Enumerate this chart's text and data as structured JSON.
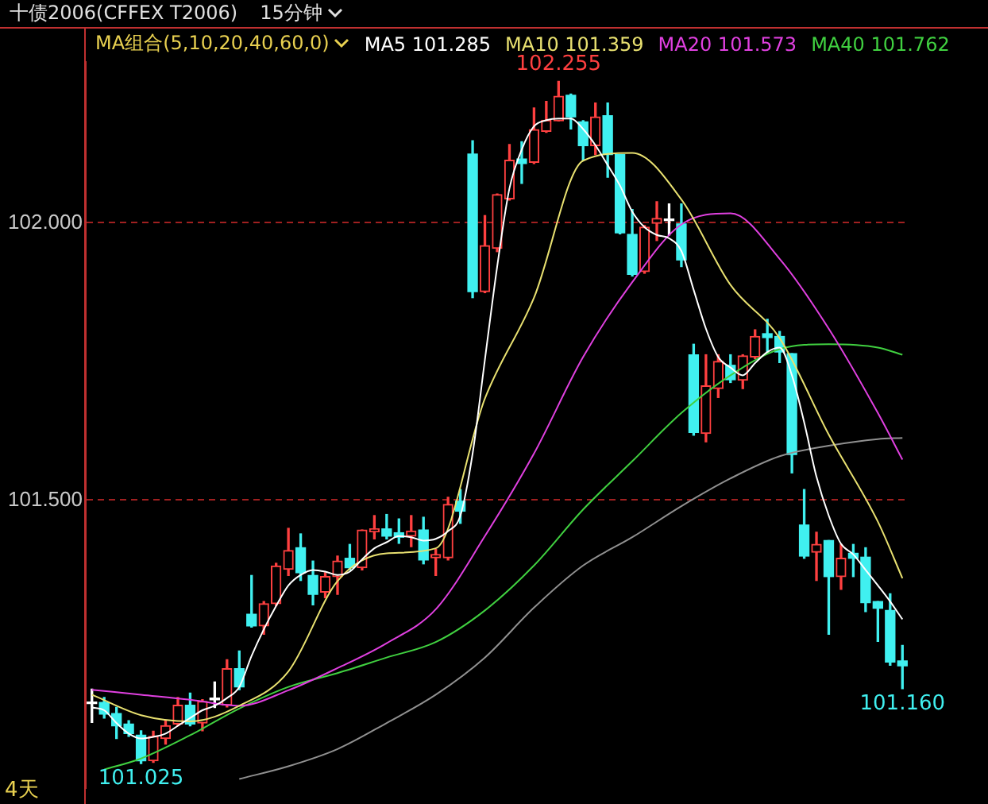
{
  "chart_data": {
    "type": "candlestick",
    "title": "十债2006(CFFEX T2006)",
    "subtitle": "15分钟",
    "legend_title": "MA组合(5,10,20,40,60,0)",
    "legend": "top",
    "grid": "y",
    "tick_labels": "y",
    "categories": [
      null,
      null,
      null,
      null,
      null,
      null,
      null,
      null,
      null,
      null,
      null,
      null,
      null,
      null,
      null,
      null,
      null,
      null,
      null,
      null,
      null,
      null,
      null,
      null,
      null,
      null,
      null,
      null,
      null,
      null,
      null,
      null,
      null,
      null,
      null,
      null,
      null,
      null,
      null,
      null,
      null,
      null,
      null,
      null,
      null,
      null,
      null,
      null,
      null,
      null,
      null,
      null,
      null,
      null,
      null,
      null,
      null,
      null,
      null,
      null,
      null,
      null,
      null,
      null,
      null,
      null,
      null
    ],
    "ylim": [
      100.98,
      102.29
    ],
    "yticks": [
      {
        "value": 101.5,
        "label": "101.500"
      },
      {
        "value": 102,
        "label": "102.000"
      }
    ],
    "ohlc": [
      [
        101.133,
        101.159,
        101.099,
        101.133
      ],
      [
        101.135,
        101.144,
        101.107,
        101.114
      ],
      [
        101.115,
        101.126,
        101.07,
        101.093
      ],
      [
        101.096,
        101.102,
        101.074,
        101.079
      ],
      [
        101.076,
        101.084,
        101.025,
        101.03
      ],
      [
        101.03,
        101.083,
        101.027,
        101.074
      ],
      [
        101.07,
        101.102,
        101.06,
        101.093
      ],
      [
        101.096,
        101.144,
        101.093,
        101.13
      ],
      [
        101.13,
        101.152,
        101.093,
        101.096
      ],
      [
        101.098,
        101.14,
        101.084,
        101.137
      ],
      [
        101.14,
        101.172,
        101.126,
        101.14
      ],
      [
        101.13,
        101.212,
        101.127,
        101.196
      ],
      [
        101.196,
        101.228,
        101.158,
        101.163
      ],
      [
        101.294,
        101.364,
        101.271,
        101.273
      ],
      [
        101.273,
        101.317,
        101.258,
        101.313
      ],
      [
        101.313,
        101.386,
        101.31,
        101.381
      ],
      [
        101.375,
        101.449,
        101.364,
        101.409
      ],
      [
        101.414,
        101.439,
        101.355,
        101.369
      ],
      [
        101.364,
        101.39,
        101.311,
        101.33
      ],
      [
        101.334,
        101.369,
        101.324,
        101.362
      ],
      [
        101.362,
        101.399,
        101.33,
        101.39
      ],
      [
        101.395,
        101.42,
        101.374,
        101.378
      ],
      [
        101.378,
        101.446,
        101.374,
        101.446
      ],
      [
        101.443,
        101.472,
        101.43,
        101.448
      ],
      [
        101.448,
        101.474,
        101.43,
        101.435
      ],
      [
        101.441,
        101.466,
        101.422,
        101.433
      ],
      [
        101.435,
        101.472,
        101.416,
        101.444
      ],
      [
        101.446,
        101.469,
        101.385,
        101.392
      ],
      [
        101.396,
        101.411,
        101.364,
        101.402
      ],
      [
        101.396,
        101.505,
        101.392,
        101.492
      ],
      [
        101.498,
        101.519,
        101.458,
        101.48
      ],
      [
        102.124,
        102.148,
        101.865,
        101.876
      ],
      [
        101.876,
        102.013,
        101.874,
        101.959
      ],
      [
        101.954,
        102.052,
        101.948,
        102.051
      ],
      [
        102.043,
        102.141,
        102.041,
        102.113
      ],
      [
        102.115,
        102.146,
        102.071,
        102.107
      ],
      [
        102.109,
        102.207,
        102.107,
        102.168
      ],
      [
        102.165,
        102.219,
        102.163,
        102.185
      ],
      [
        102.184,
        102.255,
        102.184,
        102.228
      ],
      [
        102.23,
        102.232,
        102.169,
        102.191
      ],
      [
        102.182,
        102.184,
        102.113,
        102.139
      ],
      [
        102.139,
        102.216,
        102.123,
        102.191
      ],
      [
        102.193,
        102.216,
        102.082,
        102.123
      ],
      [
        102.123,
        102.123,
        101.98,
        101.982
      ],
      [
        101.979,
        102.024,
        101.904,
        101.907
      ],
      [
        101.912,
        101.995,
        101.909,
        101.992
      ],
      [
        101.999,
        102.038,
        101.968,
        102.008
      ],
      [
        102.004,
        102.034,
        101.978,
        102.004
      ],
      [
        101.998,
        102.034,
        101.921,
        101.933
      ],
      [
        101.762,
        101.781,
        101.617,
        101.622
      ],
      [
        101.62,
        101.762,
        101.605,
        101.706
      ],
      [
        101.701,
        101.762,
        101.685,
        101.75
      ],
      [
        101.743,
        101.762,
        101.712,
        101.717
      ],
      [
        101.716,
        101.762,
        101.701,
        101.76
      ],
      [
        101.758,
        101.807,
        101.755,
        101.795
      ],
      [
        101.8,
        101.826,
        101.767,
        101.793
      ],
      [
        101.795,
        101.804,
        101.748,
        101.767
      ],
      [
        101.764,
        101.764,
        101.549,
        101.582
      ],
      [
        101.455,
        101.519,
        101.395,
        101.399
      ],
      [
        101.406,
        101.442,
        101.355,
        101.42
      ],
      [
        101.427,
        101.427,
        101.258,
        101.362
      ],
      [
        101.362,
        101.42,
        101.339,
        101.395
      ],
      [
        101.404,
        101.42,
        101.362,
        101.395
      ],
      [
        101.397,
        101.414,
        101.299,
        101.315
      ],
      [
        101.317,
        101.317,
        101.245,
        101.305
      ],
      [
        101.301,
        101.331,
        101.202,
        101.208
      ],
      [
        101.21,
        101.238,
        101.16,
        101.201
      ]
    ],
    "series": [
      {
        "name": "MA5 101.285",
        "type": "line",
        "color": "#ffffff",
        "values": [
          101.126,
          101.121,
          101.098,
          101.079,
          101.07,
          101.073,
          101.079,
          101.093,
          101.107,
          101.121,
          101.129,
          101.143,
          101.163,
          101.219,
          101.267,
          101.309,
          101.346,
          101.365,
          101.374,
          101.371,
          101.365,
          101.371,
          101.393,
          101.413,
          101.424,
          101.435,
          101.433,
          101.427,
          101.43,
          101.444,
          101.472,
          101.584,
          101.753,
          101.921,
          102.062,
          102.132,
          102.174,
          102.185,
          102.188,
          102.188,
          102.169,
          102.14,
          102.104,
          102.067,
          102.02,
          101.992,
          101.978,
          101.972,
          101.949,
          101.879,
          101.809,
          101.758,
          101.739,
          101.725,
          101.747,
          101.767,
          101.775,
          101.725,
          101.64,
          101.542,
          101.472,
          101.421,
          101.402,
          101.374,
          101.346,
          101.317,
          101.285
        ]
      },
      {
        "name": "MA10 101.359",
        "type": "line",
        "color": "#e8e070",
        "values": [
          101.149,
          null,
          null,
          null,
          101.112,
          null,
          null,
          null,
          101.101,
          null,
          null,
          null,
          101.129,
          null,
          null,
          null,
          101.191,
          null,
          null,
          null,
          101.354,
          null,
          null,
          null,
          101.404,
          null,
          null,
          null,
          101.413,
          null,
          null,
          null,
          101.683,
          null,
          null,
          null,
          101.865,
          null,
          null,
          null,
          102.112,
          null,
          null,
          null,
          102.126,
          null,
          null,
          null,
          102.042,
          null,
          null,
          null,
          101.888,
          null,
          null,
          null,
          101.792,
          null,
          null,
          null,
          101.618,
          null,
          null,
          null,
          101.461,
          null,
          101.359
        ]
      },
      {
        "name": "MA20 101.573",
        "type": "line",
        "color": "#e040e0",
        "values": [
          101.158,
          null,
          null,
          null,
          101.149,
          null,
          null,
          null,
          101.14,
          null,
          null,
          null,
          101.129,
          null,
          null,
          null,
          101.157,
          null,
          null,
          null,
          101.197,
          null,
          null,
          null,
          101.242,
          null,
          null,
          null,
          101.303,
          null,
          null,
          null,
          101.435,
          null,
          null,
          null,
          101.584,
          null,
          null,
          null,
          101.758,
          null,
          null,
          null,
          101.893,
          null,
          null,
          null,
          101.997,
          null,
          null,
          null,
          102.017,
          null,
          null,
          null,
          101.935,
          null,
          null,
          null,
          101.809,
          null,
          null,
          null,
          101.657,
          null,
          101.573
        ]
      },
      {
        "name": "MA40 101.762",
        "type": "line",
        "color": "#40d040",
        "values": [
          null,
          101.014,
          null,
          null,
          101.034,
          null,
          null,
          null,
          101.076,
          null,
          null,
          null,
          101.124,
          null,
          null,
          null,
          101.163,
          null,
          null,
          null,
          101.188,
          null,
          null,
          null,
          101.216,
          null,
          null,
          null,
          101.244,
          null,
          null,
          null,
          101.301,
          null,
          null,
          null,
          101.382,
          null,
          null,
          null,
          101.483,
          null,
          null,
          null,
          101.57,
          null,
          null,
          null,
          101.657,
          null,
          null,
          null,
          101.725,
          null,
          null,
          null,
          101.772,
          null,
          null,
          null,
          101.781,
          null,
          null,
          null,
          101.775,
          null,
          101.762
        ]
      },
      {
        "type": "line",
        "color": "#909090",
        "values": [
          null,
          null,
          null,
          null,
          null,
          null,
          null,
          null,
          null,
          null,
          null,
          null,
          100.997,
          null,
          null,
          null,
          101.02,
          null,
          null,
          null,
          101.051,
          null,
          null,
          null,
          101.098,
          null,
          null,
          null,
          101.149,
          null,
          null,
          null,
          101.216,
          null,
          null,
          null,
          101.306,
          null,
          null,
          null,
          101.382,
          null,
          null,
          null,
          101.433,
          null,
          null,
          null,
          101.489,
          null,
          null,
          null,
          101.539,
          null,
          null,
          null,
          101.579,
          null,
          null,
          null,
          101.598,
          null,
          null,
          null,
          101.61,
          null,
          101.612
        ]
      }
    ],
    "annotations": [
      {
        "text": "102.255",
        "y": 102.255
      },
      {
        "text": "101.160",
        "y": 101.16
      },
      {
        "text": "101.025",
        "y": 101.025
      },
      "4天"
    ]
  }
}
